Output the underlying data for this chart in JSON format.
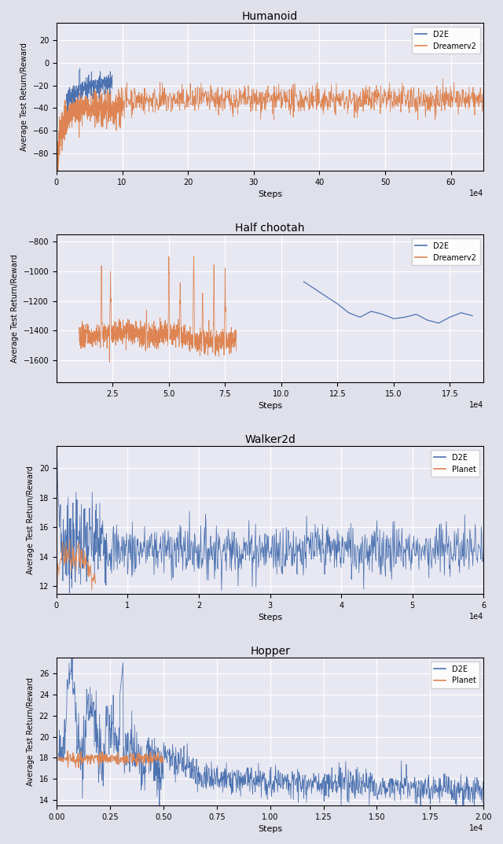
{
  "fig_width": 6.4,
  "fig_height": 10.73,
  "bg_color": "#dfe0ea",
  "plot_bg_color": "#e8e8f2",
  "blue_color": "#4c72b0",
  "orange_color": "#dd8452",
  "ylabel": "Average Test Return/Reward",
  "xlabel": "Steps",
  "subplots": [
    {
      "title": "Humanoid",
      "legend": [
        "D2E",
        "Dreamerv2"
      ],
      "ylim": [
        -95,
        35
      ],
      "yticks": [
        -80,
        -60,
        -40,
        -20,
        0,
        20
      ],
      "xlim": [
        0,
        65
      ],
      "xticks": [
        0,
        10,
        20,
        30,
        40,
        50,
        60
      ],
      "xscale_label": "1e4"
    },
    {
      "title": "Half chootah",
      "legend": [
        "D2E",
        "Dreamerv2"
      ],
      "ylim": [
        -1750,
        -750
      ],
      "yticks": [
        -1600,
        -1400,
        -1200,
        -1000,
        -800
      ],
      "xlim": [
        0,
        19
      ],
      "xticks": [
        2.5,
        5.0,
        7.5,
        10.0,
        12.5,
        15.0,
        17.5
      ],
      "xscale_label": "1e4"
    },
    {
      "title": "Walker2d",
      "legend": [
        "D2E",
        "Planet"
      ],
      "ylim": [
        11.5,
        21.5
      ],
      "yticks": [
        12,
        14,
        16,
        18,
        20
      ],
      "xlim": [
        0,
        6
      ],
      "xticks": [
        0,
        1,
        2,
        3,
        4,
        5,
        6
      ],
      "xscale_label": "1e4"
    },
    {
      "title": "Hopper",
      "legend": [
        "D2E",
        "Planet"
      ],
      "ylim": [
        13.5,
        27.5
      ],
      "yticks": [
        14,
        16,
        18,
        20,
        22,
        24,
        26
      ],
      "xlim": [
        0,
        2.0
      ],
      "xticks": [
        0.0,
        0.25,
        0.5,
        0.75,
        1.0,
        1.25,
        1.5,
        1.75,
        2.0
      ],
      "xscale_label": "1e4"
    }
  ]
}
